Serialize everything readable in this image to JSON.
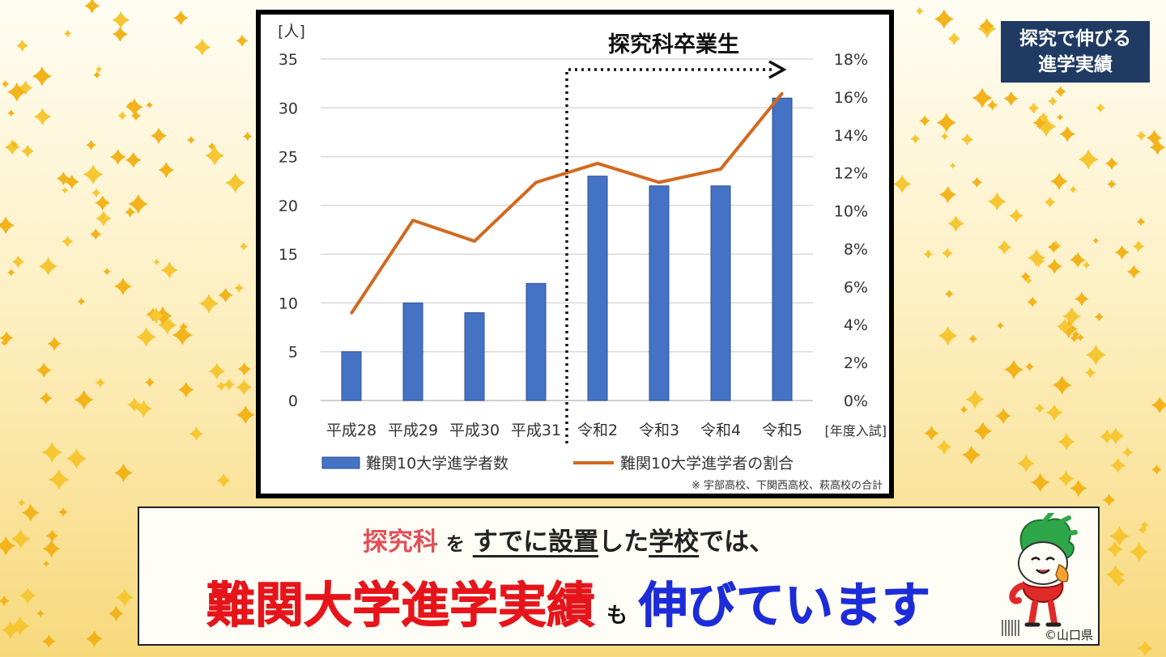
{
  "badge": {
    "line1": "探究で伸びる",
    "line2": "進学実績"
  },
  "banner": {
    "part1": "探究科",
    "part2": "を",
    "part3": "すでに設置",
    "part4": "した",
    "part5": "学校",
    "part6": "では、",
    "headline_red": "難関大学進学実績",
    "headline_mo": "も",
    "headline_blue": "伸びています",
    "credit": "©山口県"
  },
  "colors": {
    "bar": "#4472c4",
    "line": "#d2691e",
    "accent_red": "#e6151b",
    "accent_blue": "#1d2cd8",
    "badge": "#1f3a63"
  },
  "chart_data": {
    "type": "bar",
    "categories": [
      "平成28",
      "平成29",
      "平成30",
      "平成31",
      "令和2",
      "令和3",
      "令和4",
      "令和5"
    ],
    "x_axis_suffix": "[年度入試]",
    "left_axis": {
      "unit_label": "[人]",
      "min": 0,
      "max": 35,
      "step": 5,
      "ticks": [
        "0",
        "5",
        "10",
        "15",
        "20",
        "25",
        "30",
        "35"
      ]
    },
    "right_axis": {
      "min": 0,
      "max": 18,
      "step": 2,
      "ticks": [
        "0%",
        "2%",
        "4%",
        "6%",
        "8%",
        "10%",
        "12%",
        "14%",
        "16%",
        "18%"
      ]
    },
    "series": [
      {
        "name": "難関10大学進学者数",
        "type": "bar",
        "axis": "left",
        "values": [
          5,
          10,
          9,
          12,
          23,
          22,
          22,
          31
        ]
      },
      {
        "name": "難関10大学進学者の割合",
        "type": "line",
        "axis": "right",
        "values": [
          4.6,
          9.5,
          8.4,
          11.5,
          12.5,
          11.5,
          12.2,
          16.2
        ]
      }
    ],
    "annotation": {
      "text": "探究科卒業生",
      "start_category": "令和2"
    },
    "footnote": "※ 宇部高校、下関西高校、萩高校の合計",
    "grid": true,
    "legend_position": "bottom"
  }
}
